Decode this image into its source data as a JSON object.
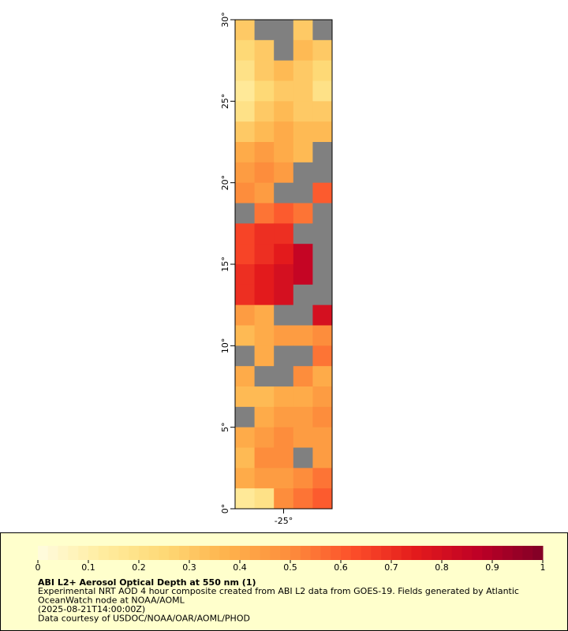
{
  "chart_data": {
    "type": "heatmap",
    "title": "ABI L2+ Aerosol Optical Depth at 550 nm (1)",
    "caption": [
      "Experimental NRT AOD 4 hour composite created from ABI L2 data from GOES-19. Fields generated by Atlantic",
      "OceanWatch node at NOAA/AOML",
      "(2025-08-21T14:00:00Z)",
      "Data courtesy of USDOC/NOAA/OAR/AOML/PHOD"
    ],
    "xlim": [
      -28,
      -22
    ],
    "ylim": [
      0,
      30
    ],
    "xticks": [
      {
        "value": -25,
        "label": "-25°"
      }
    ],
    "yticks": [
      {
        "value": 0,
        "label": "0°"
      },
      {
        "value": 5,
        "label": "5°"
      },
      {
        "value": 10,
        "label": "10°"
      },
      {
        "value": 15,
        "label": "15°"
      },
      {
        "value": 20,
        "label": "20°"
      },
      {
        "value": 25,
        "label": "25°"
      },
      {
        "value": 30,
        "label": "30°"
      }
    ],
    "x": [
      -27.4,
      -26.2,
      -25,
      -23.8,
      -22.6
    ],
    "y": [
      29.375,
      28.125,
      26.875,
      25.625,
      24.375,
      23.125,
      21.875,
      20.625,
      19.375,
      18.125,
      16.875,
      15.625,
      14.375,
      13.125,
      11.875,
      10.625,
      9.375,
      8.125,
      6.875,
      5.625,
      4.375,
      3.125,
      1.875,
      0.625
    ],
    "z": [
      [
        0.3,
        null,
        null,
        0.3,
        null
      ],
      [
        0.25,
        0.3,
        null,
        0.35,
        0.3
      ],
      [
        0.2,
        0.3,
        0.35,
        0.3,
        0.25
      ],
      [
        0.15,
        0.25,
        0.3,
        0.3,
        0.2
      ],
      [
        0.2,
        0.3,
        0.35,
        0.3,
        0.3
      ],
      [
        0.3,
        0.35,
        0.4,
        0.35,
        0.35
      ],
      [
        0.4,
        0.45,
        0.4,
        0.35,
        null
      ],
      [
        0.45,
        0.5,
        0.45,
        null,
        null
      ],
      [
        0.5,
        0.45,
        null,
        null,
        0.6
      ],
      [
        null,
        0.55,
        0.6,
        0.55,
        null
      ],
      [
        0.65,
        0.7,
        0.7,
        null,
        null
      ],
      [
        0.65,
        0.7,
        0.75,
        0.85,
        null
      ],
      [
        0.7,
        0.75,
        0.8,
        0.85,
        null
      ],
      [
        0.7,
        0.75,
        0.8,
        null,
        null
      ],
      [
        0.45,
        0.4,
        null,
        null,
        0.8
      ],
      [
        0.35,
        0.4,
        0.45,
        0.45,
        0.5
      ],
      [
        null,
        0.4,
        null,
        null,
        0.55
      ],
      [
        0.4,
        null,
        null,
        0.5,
        0.4
      ],
      [
        0.35,
        0.35,
        0.4,
        0.4,
        0.45
      ],
      [
        null,
        0.4,
        0.45,
        0.45,
        0.5
      ],
      [
        0.4,
        0.45,
        0.5,
        0.45,
        0.45
      ],
      [
        0.35,
        0.5,
        0.5,
        null,
        0.45
      ],
      [
        0.4,
        0.45,
        0.45,
        0.5,
        0.55
      ],
      [
        0.15,
        0.2,
        0.5,
        0.55,
        0.6
      ]
    ],
    "zlim": [
      0,
      1
    ],
    "zticks": [
      0,
      0.1,
      0.2,
      0.3,
      0.4,
      0.5,
      0.6,
      0.7,
      0.8,
      0.9,
      1
    ],
    "colorscale": [
      "#fffce0",
      "#ffeda0",
      "#fed976",
      "#feb24c",
      "#fd8d3c",
      "#fc4e2a",
      "#e31a1c",
      "#bd0026",
      "#800026"
    ],
    "missing_color": "#808080"
  }
}
